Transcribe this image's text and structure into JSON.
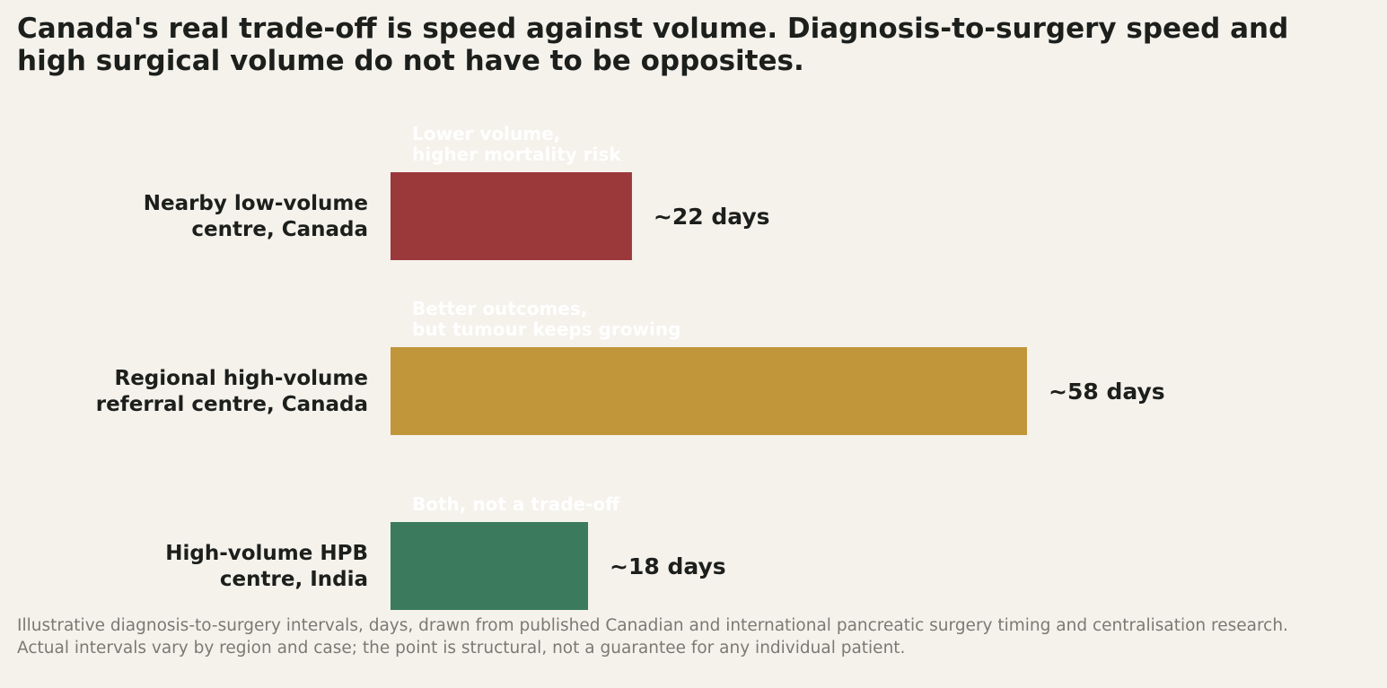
{
  "title": "Canada's real trade-off is speed against volume. Diagnosis-to-surgery speed and high surgical volume do not have to be opposites.",
  "footnote": {
    "line1": "Illustrative diagnosis-to-surgery intervals, days, drawn from published Canadian and international pancreatic surgery timing and centralisation research.",
    "line2": "Actual intervals vary by region and case; the point is structural, not a guarantee for any individual patient."
  },
  "chart_data": {
    "type": "bar",
    "orientation": "horizontal",
    "categories": [
      [
        "Nearby low-volume",
        "centre, Canada"
      ],
      [
        "Regional high-volume",
        "referral centre, Canada"
      ],
      [
        "High-volume HPB",
        "centre, India"
      ]
    ],
    "values": [
      22,
      58,
      18
    ],
    "value_labels": [
      "~22 days",
      "~58 days",
      "~18 days"
    ],
    "annotations": [
      [
        "Lower volume,",
        "higher mortality risk"
      ],
      [
        "Better outcomes,",
        "but tumour keeps growing"
      ],
      [
        "Both, not a trade-off"
      ]
    ],
    "colors": [
      "#9b383a",
      "#c1963b",
      "#3b7a5d"
    ],
    "xlim": [
      0,
      58
    ],
    "grid": false,
    "legend": "none"
  }
}
